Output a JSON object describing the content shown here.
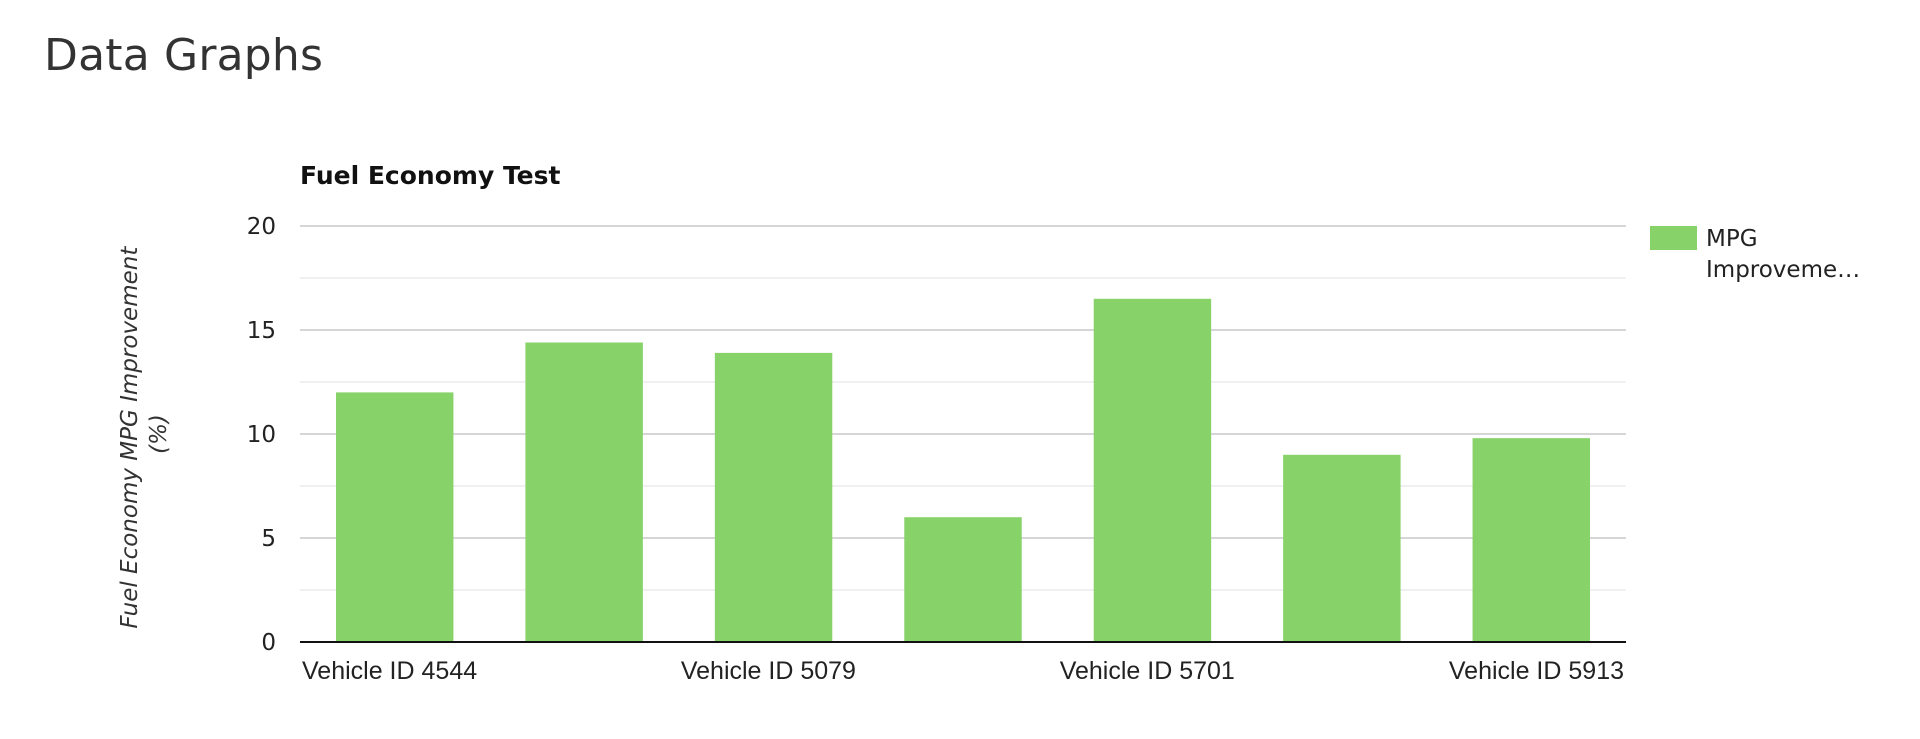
{
  "page": {
    "heading": "Data Graphs"
  },
  "chart_data": {
    "type": "bar",
    "title": "Fuel Economy Test",
    "xlabel": "",
    "ylabel": "Fuel Economy MPG Improvement (%)",
    "ylabel_lines": [
      "Fuel Economy MPG Improvement",
      "(%)"
    ],
    "categories": [
      "Vehicle ID 4544",
      "",
      "Vehicle ID 5079",
      "",
      "Vehicle ID 5701",
      "",
      "Vehicle ID 5913"
    ],
    "series": [
      {
        "name": "MPG Improvement",
        "legend_lines": [
          "MPG",
          "Improveme…"
        ],
        "color": "#88d26a",
        "values": [
          12,
          14.4,
          13.9,
          6,
          16.5,
          9,
          9.8
        ]
      }
    ],
    "ylim": [
      0,
      20
    ],
    "y_ticks": [
      "0",
      "5",
      "10",
      "15",
      "20"
    ],
    "y_tick_values": [
      0,
      5,
      10,
      15,
      20
    ],
    "minor_grid_values": [
      2.5,
      7.5,
      12.5,
      17.5
    ],
    "grid": true,
    "legend_position": "right"
  },
  "colors": {
    "bar": "#88d26a",
    "grid_major": "#c8c8c8",
    "grid_minor": "#ebebeb",
    "axis": "#111111",
    "text": "#222222"
  }
}
